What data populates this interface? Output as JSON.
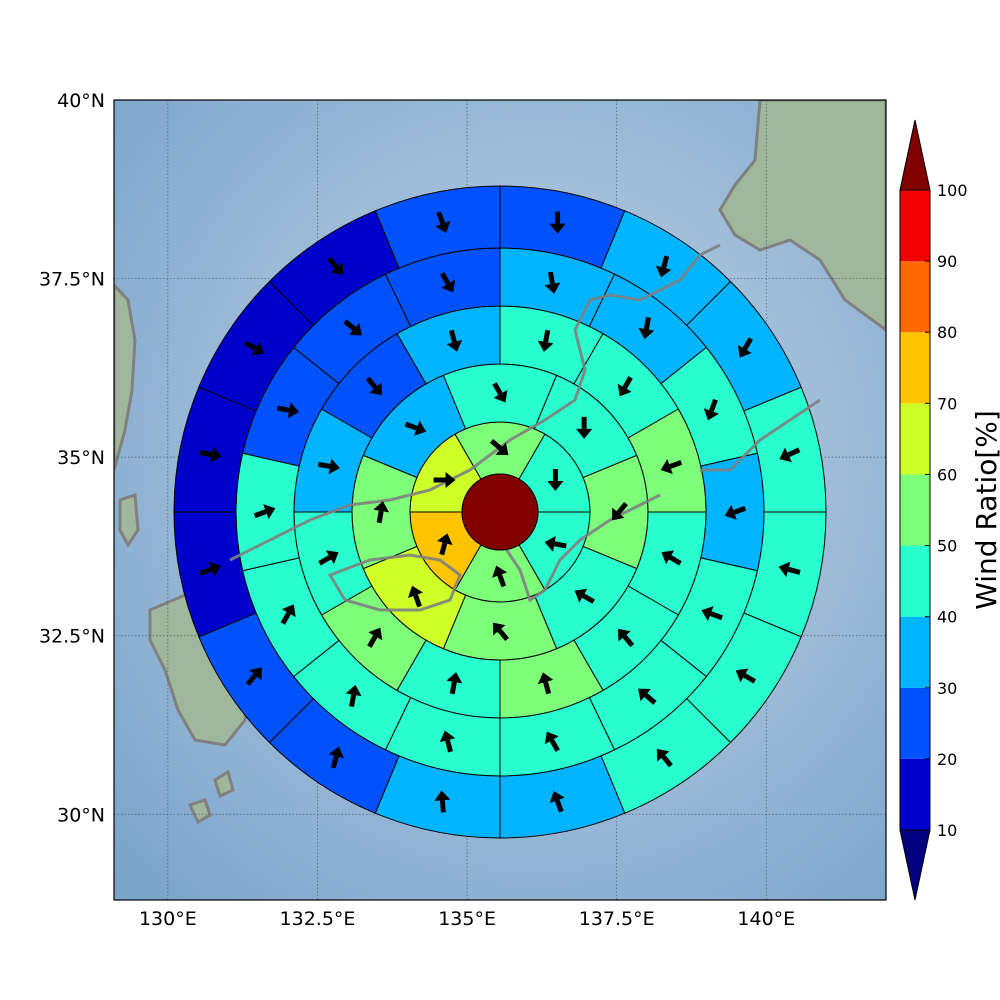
{
  "map": {
    "lon_range": [
      129.1,
      142.0
    ],
    "lat_range": [
      28.8,
      40.0
    ],
    "lon_ticks": [
      {
        "value": 130.0,
        "label": "130°E"
      },
      {
        "value": 132.5,
        "label": "132.5°E"
      },
      {
        "value": 135.0,
        "label": "135°E"
      },
      {
        "value": 137.5,
        "label": "137.5°E"
      },
      {
        "value": 140.0,
        "label": "140°E"
      }
    ],
    "lat_ticks": [
      {
        "value": 30.0,
        "label": "30°N"
      },
      {
        "value": 32.5,
        "label": "32.5°N"
      },
      {
        "value": 35.0,
        "label": "35°N"
      },
      {
        "value": 37.5,
        "label": "37.5°N"
      },
      {
        "value": 40.0,
        "label": "40°N"
      }
    ],
    "grid": true,
    "colors": {
      "sea": "#8fb3d4",
      "land": "#9fb59a",
      "coastline": "#808080",
      "center_disc": "#800000",
      "arrow": "#000000",
      "cell_edge": "#000000"
    }
  },
  "colorbar": {
    "title": "Wind Ratio[%]",
    "levels": [
      10,
      20,
      30,
      40,
      50,
      60,
      70,
      80,
      90,
      100
    ],
    "colors": [
      "#0000cc",
      "#0052ff",
      "#00b4ff",
      "#29ffce",
      "#7dff7a",
      "#ceff29",
      "#ffc400",
      "#ff6800",
      "#f00000"
    ],
    "under_color": "#000080",
    "over_color": "#800000"
  },
  "chart_data": {
    "type": "polar-grid-vector-map",
    "center": {
      "lon": 135.55,
      "lat": 34.6
    },
    "ring_count": 6,
    "sectors_per_ring": [
      0,
      6,
      8,
      12,
      14,
      16
    ],
    "ring_values": [
      [],
      [
        65,
        55,
        45,
        40,
        55,
        70
      ],
      [
        30,
        40,
        45,
        50,
        40,
        50,
        60,
        50
      ],
      [
        30,
        25,
        30,
        40,
        45,
        50,
        40,
        45,
        50,
        40,
        55,
        45
      ],
      [
        25,
        20,
        25,
        30,
        30,
        40,
        35,
        40,
        45,
        40,
        45,
        40,
        45,
        40
      ],
      [
        15,
        10,
        15,
        20,
        25,
        30,
        35,
        40,
        45,
        45,
        40,
        35,
        30,
        25,
        20,
        15
      ]
    ],
    "ring_directions_deg": [
      [],
      [
        90,
        130,
        180,
        280,
        340,
        15
      ],
      [
        110,
        150,
        180,
        220,
        300,
        320,
        340,
        10
      ],
      [
        100,
        140,
        165,
        190,
        210,
        250,
        300,
        320,
        345,
        10,
        30,
        60
      ],
      [
        100,
        130,
        150,
        170,
        190,
        200,
        250,
        290,
        310,
        330,
        345,
        10,
        30,
        70
      ],
      [
        100,
        120,
        140,
        160,
        180,
        195,
        210,
        245,
        285,
        300,
        320,
        340,
        355,
        15,
        40,
        70
      ]
    ]
  }
}
